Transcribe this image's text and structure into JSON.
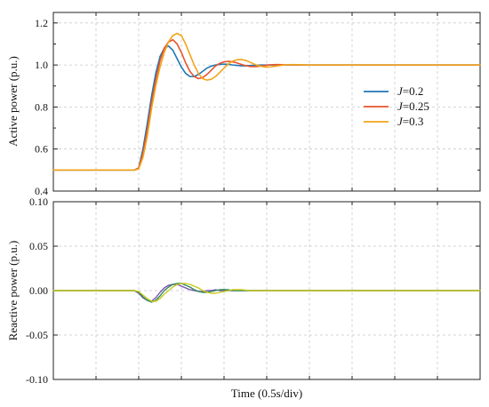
{
  "chart_data": [
    {
      "type": "line",
      "ylabel": "Active power (p.u.)",
      "xlabel": "",
      "ylim": [
        0.4,
        1.25
      ],
      "yticks": [
        "0.4",
        "0.6",
        "0.8",
        "1.0",
        "1.2"
      ],
      "ytick_values": [
        0.4,
        0.6,
        0.8,
        1.0,
        1.2
      ],
      "xlim": [
        0,
        5
      ],
      "grid": true,
      "legend_position": "right",
      "x": [
        0,
        0.3,
        0.6,
        0.8,
        0.95,
        1.0,
        1.05,
        1.1,
        1.15,
        1.2,
        1.25,
        1.3,
        1.35,
        1.4,
        1.45,
        1.5,
        1.55,
        1.6,
        1.65,
        1.7,
        1.75,
        1.8,
        1.85,
        1.9,
        1.95,
        2.0,
        2.05,
        2.1,
        2.15,
        2.2,
        2.25,
        2.3,
        2.35,
        2.4,
        2.45,
        2.5,
        2.55,
        2.6,
        2.65,
        2.7,
        2.8,
        2.9,
        3.0,
        3.2,
        3.5,
        4.0,
        4.5,
        5.0
      ],
      "series": [
        {
          "name_prefix": "J",
          "name_value": "=0.2",
          "color": "#1f77b4",
          "values": [
            0.5,
            0.5,
            0.5,
            0.5,
            0.5,
            0.51,
            0.6,
            0.72,
            0.85,
            0.96,
            1.04,
            1.08,
            1.09,
            1.07,
            1.03,
            0.99,
            0.96,
            0.945,
            0.945,
            0.955,
            0.97,
            0.985,
            0.995,
            1.0,
            1.003,
            1.004,
            1.003,
            1.0,
            0.998,
            0.996,
            0.996,
            0.997,
            0.998,
            0.999,
            1.0,
            1.0,
            1.0,
            1.0,
            1.0,
            1.0,
            1.0,
            1.0,
            1.0,
            1.0,
            1.0,
            1.0,
            1.0,
            1.0
          ]
        },
        {
          "name_prefix": "J",
          "name_value": "=0.25",
          "color": "#e8542b",
          "values": [
            0.5,
            0.5,
            0.5,
            0.5,
            0.5,
            0.51,
            0.58,
            0.69,
            0.82,
            0.93,
            1.02,
            1.08,
            1.11,
            1.12,
            1.1,
            1.06,
            1.01,
            0.97,
            0.945,
            0.935,
            0.94,
            0.955,
            0.975,
            0.995,
            1.008,
            1.015,
            1.017,
            1.015,
            1.01,
            1.003,
            0.997,
            0.993,
            0.992,
            0.993,
            0.996,
            0.999,
            1.001,
            1.002,
            1.002,
            1.001,
            1.0,
            1.0,
            1.0,
            1.0,
            1.0,
            1.0,
            1.0,
            1.0
          ]
        },
        {
          "name_prefix": "J",
          "name_value": "=0.3",
          "color": "#f2a51a",
          "values": [
            0.5,
            0.5,
            0.5,
            0.5,
            0.5,
            0.505,
            0.56,
            0.66,
            0.79,
            0.9,
            0.99,
            1.06,
            1.11,
            1.14,
            1.15,
            1.14,
            1.1,
            1.05,
            1.0,
            0.96,
            0.935,
            0.928,
            0.932,
            0.945,
            0.965,
            0.985,
            1.005,
            1.018,
            1.025,
            1.026,
            1.022,
            1.014,
            1.005,
            0.997,
            0.992,
            0.99,
            0.991,
            0.994,
            0.997,
            1.0,
            1.002,
            1.001,
            1.0,
            1.0,
            1.0,
            1.0,
            1.0,
            1.0
          ]
        }
      ]
    },
    {
      "type": "line",
      "ylabel": "Reactive power (p.u.)",
      "xlabel": "Time (0.5s/div)",
      "ylim": [
        -0.1,
        0.1
      ],
      "yticks": [
        "0.10",
        "0.05",
        "0.00",
        "-0.05",
        "-0.10"
      ],
      "ytick_values": [
        0.1,
        0.05,
        0.0,
        -0.05,
        -0.1
      ],
      "xlim": [
        0,
        5
      ],
      "grid": true,
      "x": [
        0,
        0.3,
        0.6,
        0.8,
        0.95,
        1.0,
        1.05,
        1.1,
        1.15,
        1.2,
        1.25,
        1.3,
        1.35,
        1.4,
        1.45,
        1.5,
        1.55,
        1.6,
        1.65,
        1.7,
        1.75,
        1.8,
        1.85,
        1.9,
        1.95,
        2.0,
        2.05,
        2.1,
        2.15,
        2.2,
        2.3,
        2.4,
        2.5,
        2.7,
        3.0,
        3.5,
        4.0,
        4.5,
        5.0
      ],
      "series": [
        {
          "color": "#7b4fb5",
          "values": [
            0.0,
            0.0,
            0.0,
            0.0,
            0.0,
            -0.003,
            -0.008,
            -0.011,
            -0.012,
            -0.008,
            -0.002,
            0.003,
            0.006,
            0.007,
            0.007,
            0.005,
            0.003,
            0.001,
            0.0,
            -0.001,
            -0.001,
            0.0,
            0.0,
            0.001,
            0.0,
            0.0,
            0.0,
            0.0,
            0.0,
            0.0,
            0.0,
            0.0,
            0.0,
            0.0,
            0.0,
            0.0,
            0.0,
            0.0,
            0.0
          ]
        },
        {
          "color": "#2e8b57",
          "values": [
            0.0,
            0.0,
            0.0,
            0.0,
            0.0,
            -0.002,
            -0.007,
            -0.011,
            -0.013,
            -0.011,
            -0.006,
            0.0,
            0.004,
            0.007,
            0.008,
            0.008,
            0.006,
            0.004,
            0.001,
            -0.001,
            -0.002,
            -0.002,
            -0.001,
            0.0,
            0.001,
            0.001,
            0.001,
            0.0,
            0.0,
            0.0,
            0.0,
            0.0,
            0.0,
            0.0,
            0.0,
            0.0,
            0.0,
            0.0,
            0.0
          ]
        },
        {
          "color": "#c8c81e",
          "values": [
            0.0,
            0.0,
            0.0,
            0.0,
            0.0,
            -0.001,
            -0.005,
            -0.009,
            -0.012,
            -0.012,
            -0.009,
            -0.004,
            0.0,
            0.004,
            0.007,
            0.008,
            0.008,
            0.007,
            0.005,
            0.003,
            0.0,
            -0.002,
            -0.003,
            -0.003,
            -0.002,
            -0.001,
            0.0,
            0.001,
            0.001,
            0.001,
            0.0,
            0.0,
            0.0,
            0.0,
            0.0,
            0.0,
            0.0,
            0.0,
            0.0
          ]
        }
      ]
    }
  ]
}
